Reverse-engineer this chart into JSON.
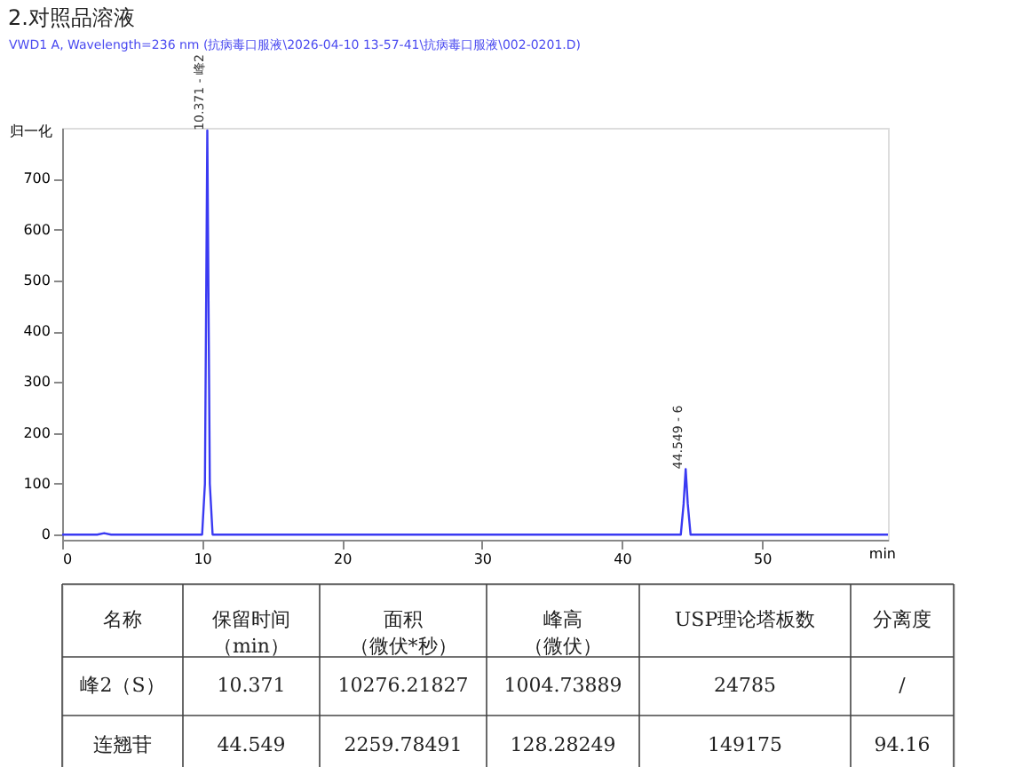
{
  "chart_data": {
    "type": "line",
    "title": "2.对照品溶液",
    "subtitle": "VWD1 A, Wavelength=236 nm (抗病毒口服液\\2026-04-10 13-57-41\\抗病毒口服液\\002-0201.D)",
    "ylabel": "归一化",
    "xlabel": "min",
    "x": [
      0,
      2.5,
      3.0,
      3.5,
      10.0,
      10.2,
      10.371,
      10.55,
      10.75,
      44.2,
      44.4,
      44.549,
      44.7,
      44.9,
      59
    ],
    "series": [
      {
        "color": "#3a3af2",
        "values": [
          0,
          0,
          3,
          0,
          0,
          100,
          795,
          100,
          0,
          0,
          60,
          129,
          60,
          0,
          0
        ]
      }
    ],
    "xlim": [
      0,
      59
    ],
    "xticks": [
      0,
      10,
      20,
      30,
      40,
      50
    ],
    "ylim": [
      -10,
      800
    ],
    "yticks": [
      0,
      100,
      200,
      300,
      400,
      500,
      600,
      700
    ],
    "grid": false,
    "annotations": [
      {
        "text": "10.371 - 峰2",
        "x": 10.371,
        "y": 795
      },
      {
        "text": "44.549 - 6",
        "x": 44.549,
        "y": 129
      },
      "名称",
      "保留时间（min）",
      "面积（微伏*秒）",
      "峰高（微伏）",
      "USP理论塔板数",
      "分离度",
      "峰2（S）",
      "10.371",
      "10276.21827",
      "1004.73889",
      "24785",
      "/",
      "连翘苷",
      "44.549",
      "2259.78491",
      "128.28249",
      "149175",
      "94.16"
    ]
  }
}
